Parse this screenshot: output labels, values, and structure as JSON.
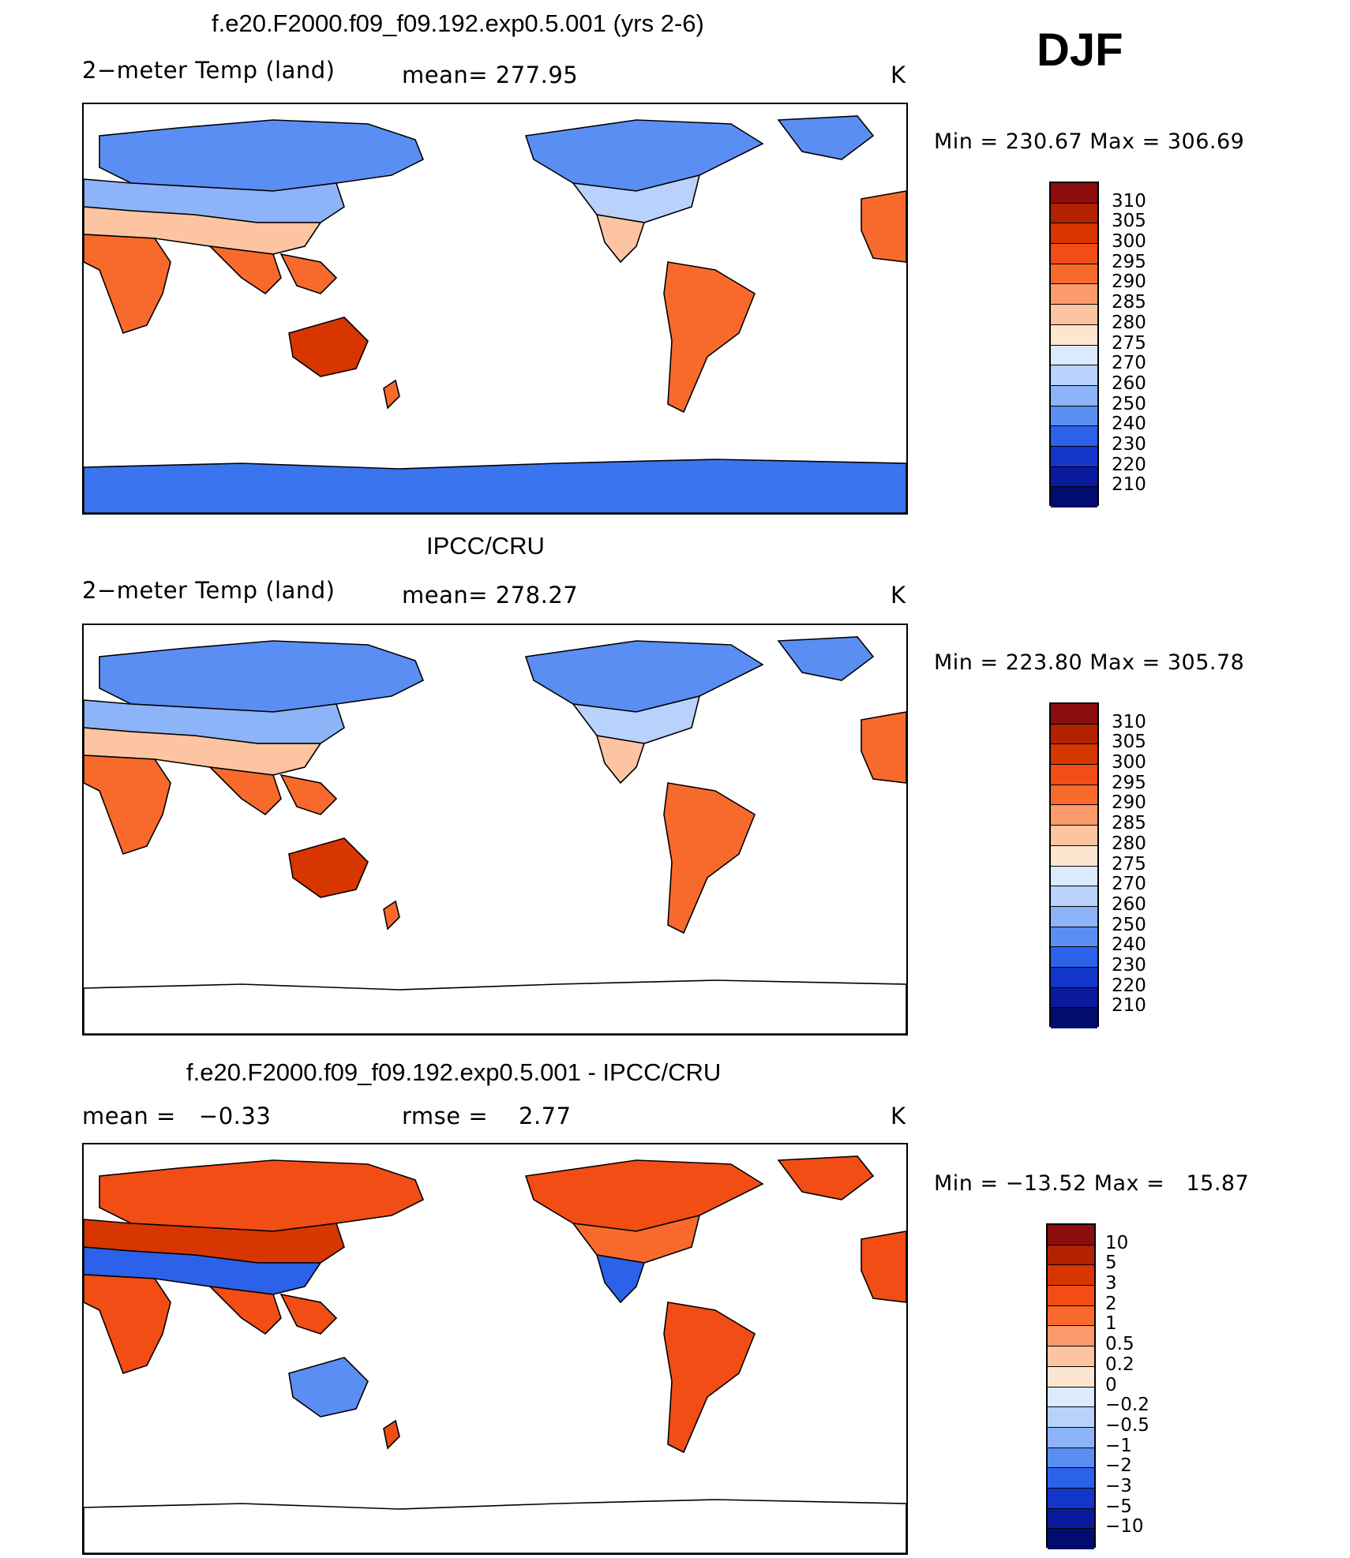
{
  "season": "DJF",
  "units": "K",
  "panels": [
    {
      "title": "f.e20.F2000.f09_f09.192.exp0.5.001 (yrs 2-6)",
      "left_label": "2−meter Temp (land)",
      "center_label": "mean= 277.95",
      "units": "K",
      "minmax": "Min = 230.67 Max = 306.69",
      "colorbar": {
        "labels": [
          "310",
          "305",
          "300",
          "295",
          "290",
          "285",
          "280",
          "275",
          "270",
          "260",
          "250",
          "240",
          "230",
          "220",
          "210"
        ],
        "colors": [
          "#8b0d0d",
          "#b32200",
          "#d83600",
          "#f14d14",
          "#f86a2c",
          "#fb9a6a",
          "#fcc4a0",
          "#fde6d0",
          "#dbeafd",
          "#b8d2fb",
          "#8db3f8",
          "#5b8ef3",
          "#2c62ea",
          "#1236c9",
          "#0a1a9c",
          "#000c6e"
        ]
      },
      "map_palette": {
        "cold1": "#5b8ef3",
        "cold2": "#8db3f8",
        "cold3": "#b8d2fb",
        "mild": "#fcc4a0",
        "warm": "#f86a2c",
        "hot": "#d83600",
        "antarctic": "#3a74ee"
      }
    },
    {
      "title": "IPCC/CRU",
      "left_label": "2−meter Temp (land)",
      "center_label": "mean= 278.27",
      "units": "K",
      "minmax": "Min = 223.80 Max = 305.78",
      "colorbar": {
        "labels": [
          "310",
          "305",
          "300",
          "295",
          "290",
          "285",
          "280",
          "275",
          "270",
          "260",
          "250",
          "240",
          "230",
          "220",
          "210"
        ],
        "colors": [
          "#8b0d0d",
          "#b32200",
          "#d83600",
          "#f14d14",
          "#f86a2c",
          "#fb9a6a",
          "#fcc4a0",
          "#fde6d0",
          "#dbeafd",
          "#b8d2fb",
          "#8db3f8",
          "#5b8ef3",
          "#2c62ea",
          "#1236c9",
          "#0a1a9c",
          "#000c6e"
        ]
      },
      "map_palette": {
        "cold1": "#5b8ef3",
        "cold2": "#8db3f8",
        "cold3": "#b8d2fb",
        "mild": "#fcc4a0",
        "warm": "#f86a2c",
        "hot": "#d83600",
        "antarctic": "#ffffff"
      }
    },
    {
      "title": "f.e20.F2000.f09_f09.192.exp0.5.001 - IPCC/CRU",
      "left_label": "mean =   −0.33",
      "center_label": "rmse =    2.77",
      "units": "K",
      "minmax": "Min = −13.52 Max =   15.87",
      "colorbar": {
        "labels": [
          "10",
          "5",
          "3",
          "2",
          "1",
          "0.5",
          "0.2",
          "0",
          "−0.2",
          "−0.5",
          "−1",
          "−2",
          "−3",
          "−5",
          "−10"
        ],
        "colors": [
          "#8b0d0d",
          "#b32200",
          "#d83600",
          "#f14d14",
          "#f86a2c",
          "#fb9a6a",
          "#fcc4a0",
          "#fde6d0",
          "#dbeafd",
          "#b8d2fb",
          "#8db3f8",
          "#5b8ef3",
          "#2c62ea",
          "#1236c9",
          "#0a1a9c",
          "#000c6e"
        ]
      },
      "map_palette": {
        "cold1": "#f14d14",
        "cold2": "#d83600",
        "cold3": "#f86a2c",
        "mild": "#2c62ea",
        "warm": "#f14d14",
        "hot": "#5b8ef3",
        "antarctic": "#ffffff"
      }
    }
  ]
}
